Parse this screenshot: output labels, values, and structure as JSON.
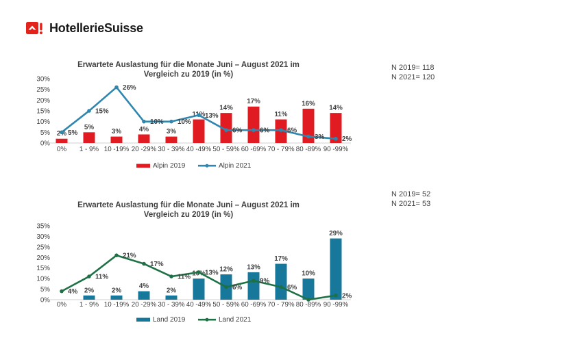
{
  "logo": {
    "brand": "HotellerieSuisse",
    "brand_color": "#e2231c"
  },
  "charts": [
    {
      "title": [
        "Erwartete Auslastung für die Monate Juni – August 2021 im",
        "Vergleich zu 2019 (in %)"
      ],
      "n_values": [
        "N 2019= 118",
        "N 2021= 120"
      ]
    },
    {
      "title": [
        "Erwartete Auslastung für die Monate Juni – August 2021 im",
        "Vergleich zu 2019 (in %)"
      ],
      "n_values": [
        "N 2019= 52",
        "N 2021= 53"
      ]
    }
  ],
  "chart_data": [
    {
      "type": "combo",
      "title": "Erwartete Auslastung für die Monate Juni – August 2021 im Vergleich zu 2019 (in %)",
      "categories": [
        "0%",
        "1 - 9%",
        "10 -19%",
        "20 -29%",
        "30 - 39%",
        "40 -49%",
        "50 - 59%",
        "60 -69%",
        "70 - 79%",
        "80 -89%",
        "90 -99%"
      ],
      "series": [
        {
          "name": "Alpin 2019",
          "type": "bar",
          "color": "#e11b22",
          "values": [
            2,
            5,
            3,
            4,
            3,
            11,
            14,
            17,
            11,
            16,
            14
          ],
          "labels": [
            "2%",
            "5%",
            "3%",
            "4%",
            "3%",
            "11%",
            "14%",
            "17%",
            "11%",
            "16%",
            "14%"
          ]
        },
        {
          "name": "Alpin 2021",
          "type": "line",
          "color": "#2f86ae",
          "values": [
            5,
            15,
            26,
            10,
            10,
            13,
            6,
            6,
            6,
            3,
            2
          ],
          "labels": [
            "5%",
            "15%",
            "26%",
            "10%",
            "10%",
            "13%",
            "6%",
            "6%",
            "6%",
            "3%",
            "2%"
          ]
        }
      ],
      "xlabel": "",
      "ylabel": "",
      "ylim": [
        0,
        30
      ],
      "ytick_step": 5,
      "ytick_suffix": "%",
      "grid": false,
      "legend_position": "bottom",
      "annotations": [
        "N 2019= 118",
        "N 2021= 120"
      ]
    },
    {
      "type": "combo",
      "title": "Erwartete Auslastung für die Monate Juni – August 2021 im Vergleich zu 2019 (in %)",
      "categories": [
        "0%",
        "1 - 9%",
        "10 -19%",
        "20 -29%",
        "30 - 39%",
        "40 -49%",
        "50 - 59%",
        "60 -69%",
        "70 - 79%",
        "80 -89%",
        "90 -99%"
      ],
      "series": [
        {
          "name": "Land 2019",
          "type": "bar",
          "color": "#17789c",
          "values": [
            0,
            2,
            2,
            4,
            2,
            10,
            12,
            13,
            17,
            10,
            29
          ],
          "labels": [
            "",
            "2%",
            "2%",
            "4%",
            "2%",
            "10%",
            "12%",
            "13%",
            "17%",
            "10%",
            "29%"
          ]
        },
        {
          "name": "Land 2021",
          "type": "line",
          "color": "#1e7145",
          "values": [
            4,
            11,
            21,
            17,
            11,
            13,
            6,
            9,
            6,
            0,
            2
          ],
          "labels": [
            "4%",
            "11%",
            "21%",
            "17%",
            "11%",
            "13%",
            "6%",
            "9%",
            "6%",
            "",
            "2%"
          ]
        }
      ],
      "xlabel": "",
      "ylabel": "",
      "ylim": [
        0,
        35
      ],
      "ytick_step": 5,
      "ytick_suffix": "%",
      "grid": false,
      "legend_position": "bottom",
      "annotations": [
        "N 2019= 52",
        "N 2021= 53"
      ]
    }
  ],
  "colors": {
    "text": "#404040",
    "axis_line": "#d9d9d9",
    "alpin_2019_bar": "#e11b22",
    "alpin_2021_line": "#2f86ae",
    "land_2019_bar": "#17789c",
    "land_2021_line": "#1e7145"
  }
}
